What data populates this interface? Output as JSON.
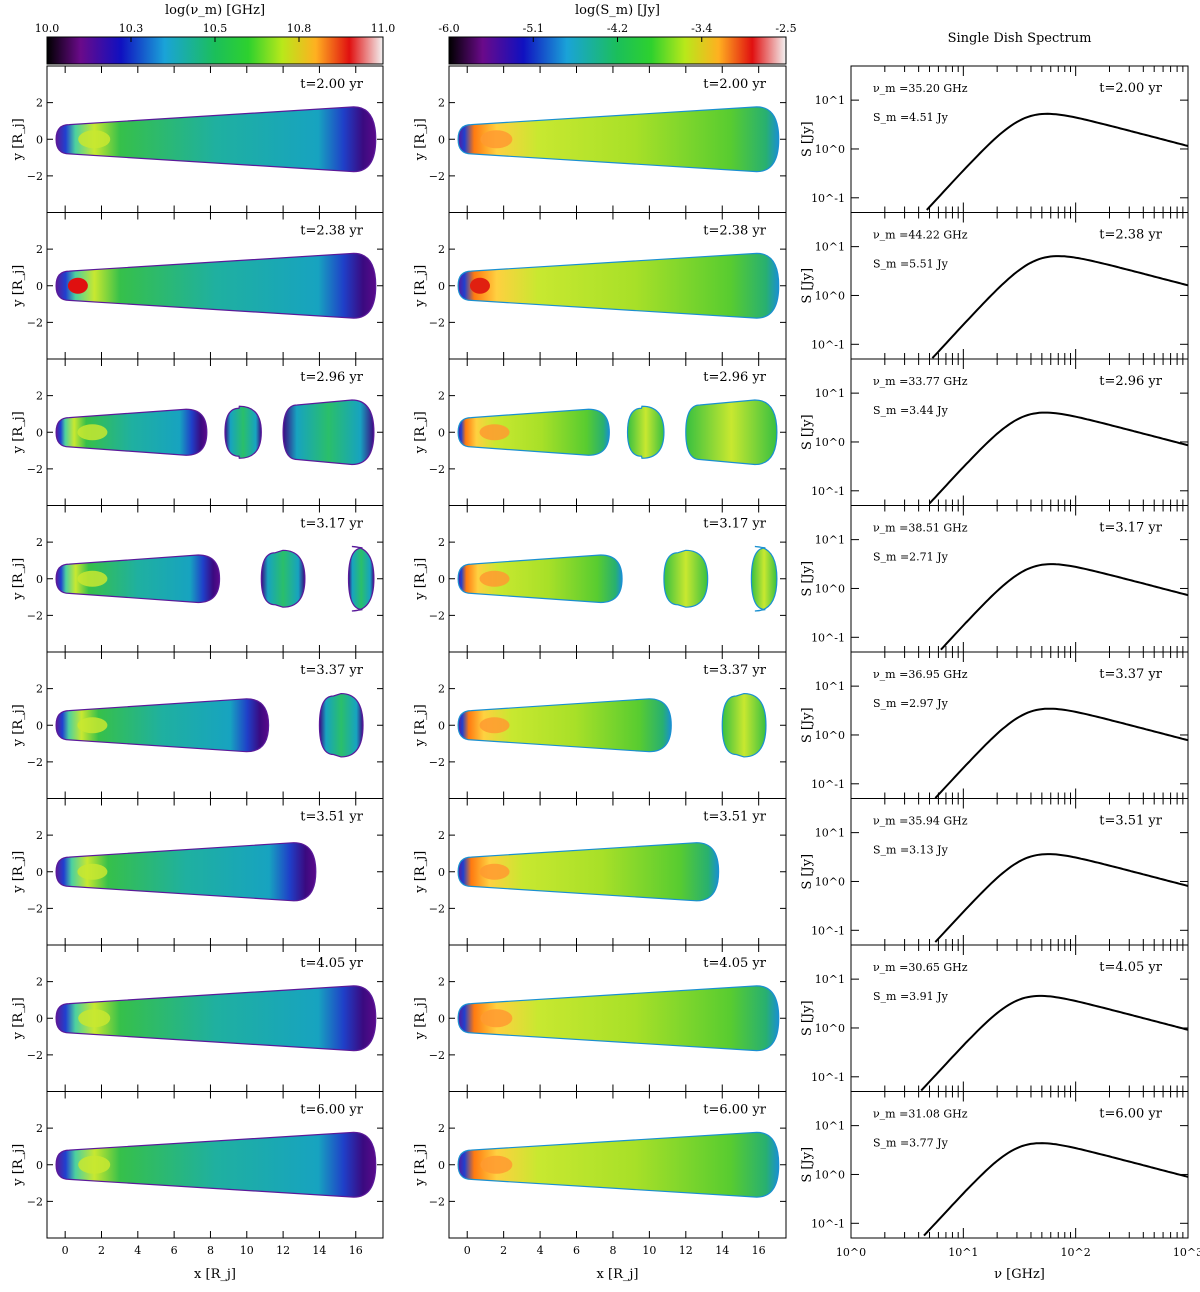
{
  "colorbars": [
    {
      "label": "log(ν_m) [GHz]",
      "ticks": [
        "10.0",
        "10.3",
        "10.5",
        "10.8",
        "11.0"
      ]
    },
    {
      "label": "log(S_m) [Jy]",
      "ticks": [
        "-6.0",
        "-5.1",
        "-4.2",
        "-3.4",
        "-2.5"
      ]
    }
  ],
  "spectrum_title": "Single Dish Spectrum",
  "map_ylabel": "y [R_j]",
  "map_xlabel": "x [R_j]",
  "spec_ylabel": "S [Jy]",
  "spec_xlabel": "ν [GHz]",
  "map_xticks": [
    "0",
    "2",
    "4",
    "6",
    "8",
    "10",
    "12",
    "14",
    "16"
  ],
  "map_yticks": [
    "2",
    "0",
    "−2"
  ],
  "spec_yticks": [
    "10^1",
    "10^0",
    "10^-1"
  ],
  "spec_xticks": [
    "10^0",
    "10^1",
    "10^2",
    "10^3"
  ],
  "chart_data": {
    "type": "line",
    "title": "Single Dish Spectrum",
    "xlabel": "ν [GHz]",
    "ylabel": "S [Jy]",
    "x_scale": "log",
    "y_scale": "log",
    "xlim": [
      1,
      1000
    ],
    "ylim": [
      0.05,
      50
    ],
    "panels": [
      {
        "time": "t=2.00 yr",
        "nu_m_label": "ν_m =35.20 GHz",
        "S_m_label": "S_m =4.51 Jy",
        "nu_m": 35.2,
        "S_m": 4.51
      },
      {
        "time": "t=2.38 yr",
        "nu_m_label": "ν_m =44.22 GHz",
        "S_m_label": "S_m =5.51 Jy",
        "nu_m": 44.22,
        "S_m": 5.51
      },
      {
        "time": "t=2.96 yr",
        "nu_m_label": "ν_m =33.77 GHz",
        "S_m_label": "S_m =3.44 Jy",
        "nu_m": 33.77,
        "S_m": 3.44
      },
      {
        "time": "t=3.17 yr",
        "nu_m_label": "ν_m =38.51 GHz",
        "S_m_label": "S_m =2.71 Jy",
        "nu_m": 38.51,
        "S_m": 2.71
      },
      {
        "time": "t=3.37 yr",
        "nu_m_label": "ν_m =36.95 GHz",
        "S_m_label": "S_m =2.97 Jy",
        "nu_m": 36.95,
        "S_m": 2.97
      },
      {
        "time": "t=3.51 yr",
        "nu_m_label": "ν_m =35.94 GHz",
        "S_m_label": "S_m =3.13 Jy",
        "nu_m": 35.94,
        "S_m": 3.13
      },
      {
        "time": "t=4.05 yr",
        "nu_m_label": "ν_m =30.65 GHz",
        "S_m_label": "S_m =3.91 Jy",
        "nu_m": 30.65,
        "S_m": 3.91
      },
      {
        "time": "t=6.00 yr",
        "nu_m_label": "ν_m =31.08 GHz",
        "S_m_label": "S_m =3.77 Jy",
        "nu_m": 31.08,
        "S_m": 3.77
      }
    ]
  }
}
